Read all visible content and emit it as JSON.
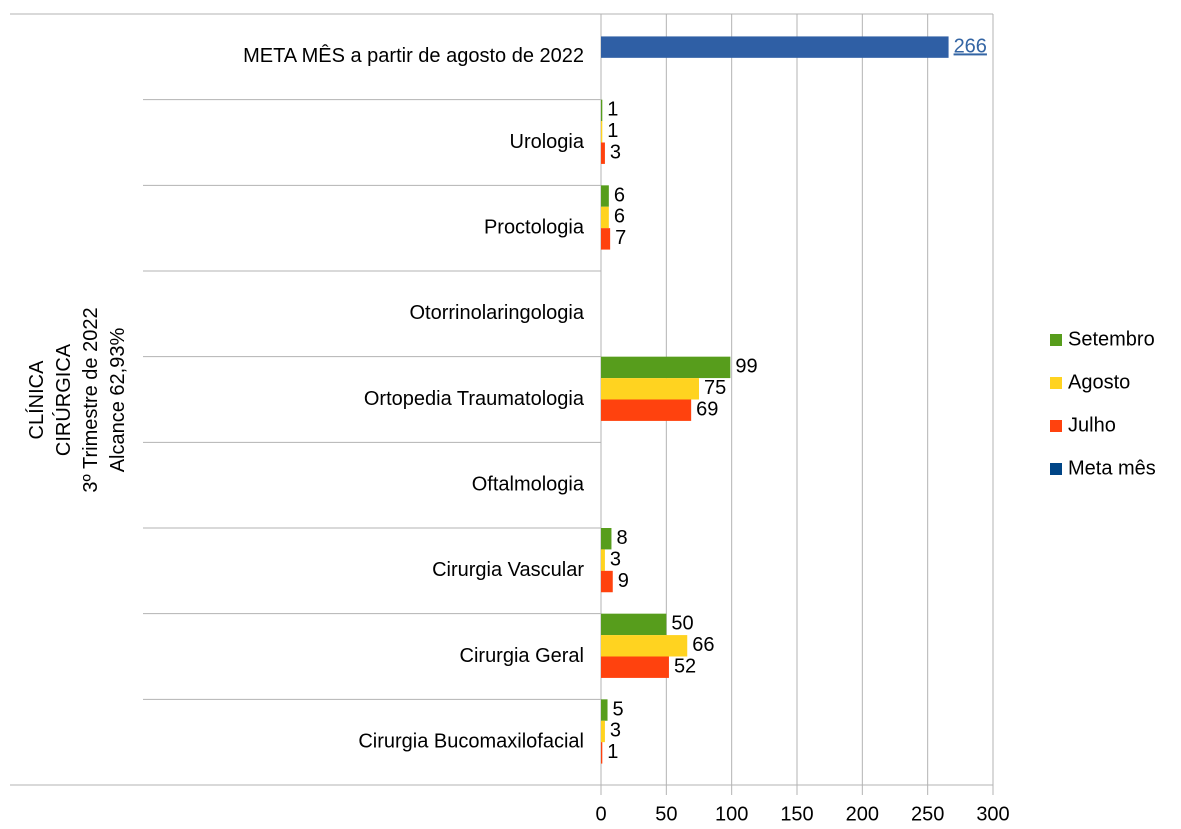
{
  "chart_data": {
    "type": "bar",
    "orientation": "horizontal",
    "y_axis_label": [
      "CLÍNICA",
      "CIRÚRGICA",
      "3º Trimestre de 2022",
      "Alcance 62,93%"
    ],
    "categories": [
      "META MÊS a partir de agosto de 2022",
      "Urologia",
      "Proctologia",
      "Otorrinolaringologia",
      "Ortopedia Traumatologia",
      "Oftalmologia",
      "Cirurgia Vascular",
      "Cirurgia Geral",
      "Cirurgia Bucomaxilofacial"
    ],
    "series": [
      {
        "name": "Setembro",
        "color": "#579d1c",
        "values": [
          null,
          1,
          6,
          null,
          99,
          null,
          8,
          50,
          5
        ]
      },
      {
        "name": "Agosto",
        "color": "#ffd320",
        "values": [
          null,
          1,
          6,
          null,
          75,
          null,
          3,
          66,
          3
        ]
      },
      {
        "name": "Julho",
        "color": "#ff420e",
        "values": [
          null,
          3,
          7,
          null,
          69,
          null,
          9,
          52,
          1
        ]
      },
      {
        "name": "Meta mês",
        "color": "#2f5fa5",
        "values": [
          266,
          null,
          null,
          null,
          null,
          null,
          null,
          null,
          null
        ]
      }
    ],
    "xlim": [
      0,
      300
    ],
    "xticks": [
      0,
      50,
      100,
      150,
      200,
      250,
      300
    ],
    "grid": true,
    "legend": "right"
  }
}
